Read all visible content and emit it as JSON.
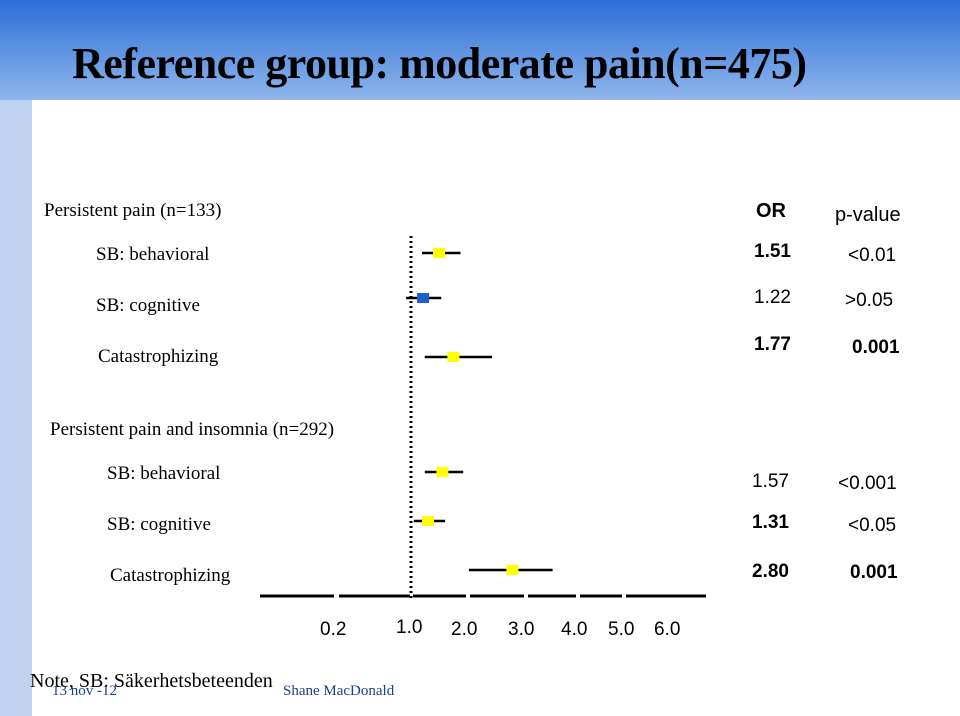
{
  "title": "Reference group: moderate pain(n=475)",
  "headers": {
    "or": "OR",
    "p": "p-value"
  },
  "groups": [
    {
      "label": "Persistent pain (n=133)"
    },
    {
      "label": "Persistent pain and insomnia (n=292)"
    }
  ],
  "rows": [
    {
      "label": "SB: behavioral",
      "or": "1.51",
      "p": "<0.01"
    },
    {
      "label": "SB: cognitive",
      "or": "1.22",
      "p": ">0.05"
    },
    {
      "label": "Catastrophizing",
      "or": "1.77",
      "p": "0.001"
    },
    {
      "label": "SB: behavioral",
      "or": "1.57",
      "p": "<0.001"
    },
    {
      "label": "SB: cognitive",
      "or": "1.31",
      "p": "<0.05"
    },
    {
      "label": "Catastrophizing",
      "or": "2.80",
      "p": "0.001"
    }
  ],
  "axis_ticks": [
    "0.2",
    "1.0",
    "2.0",
    "3.0",
    "4.0",
    "5.0",
    "6.0"
  ],
  "note": "Note, SB: Säkerhetsbeteenden",
  "footer": {
    "date": "13 nov -12",
    "author": "Shane MacDonald"
  },
  "colors": {
    "yellow_marker": "#ffff00",
    "blue_marker": "#1f5fc8",
    "footer_text": "#1a3f8a"
  },
  "chart_data": {
    "type": "scatter",
    "title": "Reference group: moderate pain(n=475)",
    "xticks": [
      0.2,
      1.0,
      2.0,
      3.0,
      4.0,
      5.0,
      6.0
    ],
    "reference_line": 1.0,
    "series": [
      {
        "name": "Persistent pain (n=133)",
        "points": [
          {
            "label": "SB: behavioral",
            "or": 1.51,
            "ci": [
              1.2,
              1.9
            ],
            "color": "yellow"
          },
          {
            "label": "SB: cognitive",
            "or": 1.22,
            "ci": [
              0.95,
              1.55
            ],
            "color": "blue"
          },
          {
            "label": "Catastrophizing",
            "or": 1.77,
            "ci": [
              1.25,
              2.45
            ],
            "color": "yellow"
          }
        ]
      },
      {
        "name": "Persistent pain and insomnia (n=292)",
        "points": [
          {
            "label": "SB: behavioral",
            "or": 1.57,
            "ci": [
              1.25,
              1.95
            ],
            "color": "yellow"
          },
          {
            "label": "SB: cognitive",
            "or": 1.31,
            "ci": [
              1.05,
              1.62
            ],
            "color": "yellow"
          },
          {
            "label": "Catastrophizing",
            "or": 2.8,
            "ci": [
              2.05,
              3.55
            ],
            "color": "yellow"
          }
        ]
      }
    ]
  }
}
